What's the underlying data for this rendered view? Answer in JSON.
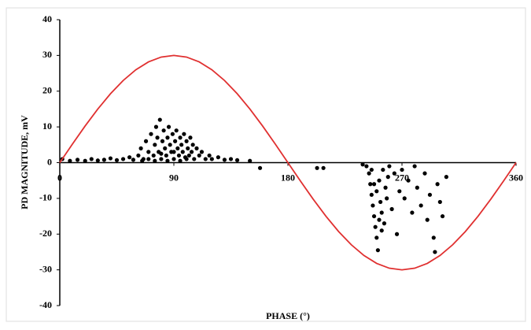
{
  "chart_data": {
    "type": "scatter",
    "y_label": "PD MAGNITUDE, mV",
    "x_label": "PHASE (°)",
    "xlim": [
      0,
      360
    ],
    "xticks": [
      0,
      90,
      180,
      270,
      360
    ],
    "ylim": [
      -40,
      40
    ],
    "yticks": [
      -40,
      -30,
      -20,
      -10,
      0,
      10,
      20,
      30,
      40
    ],
    "points": {
      "color": "#000000",
      "x": [
        2,
        8,
        14,
        20,
        25,
        30,
        35,
        40,
        45,
        50,
        55,
        58,
        62,
        64,
        66,
        68,
        70,
        72,
        74,
        75,
        76,
        77,
        78,
        79,
        80,
        81,
        82,
        83,
        84,
        85,
        86,
        87,
        88,
        89,
        90,
        91,
        92,
        93,
        94,
        95,
        96,
        97,
        98,
        99,
        100,
        101,
        102,
        103,
        104,
        105,
        106,
        108,
        110,
        112,
        115,
        118,
        120,
        125,
        130,
        135,
        140,
        150,
        158,
        203,
        208,
        65,
        70,
        75,
        80,
        85,
        90,
        95,
        100,
        239,
        242,
        244,
        245,
        246,
        247,
        248,
        249,
        250,
        251,
        252,
        253,
        254,
        255,
        256,
        257,
        258,
        259,
        260,
        262,
        264,
        266,
        268,
        270,
        272,
        275,
        278,
        280,
        282,
        285,
        288,
        290,
        292,
        295,
        296,
        298,
        300,
        302,
        305,
        250,
        248,
        246,
        252,
        254
      ],
      "values": [
        1,
        0.5,
        0.8,
        0.5,
        1,
        0.6,
        0.8,
        1.2,
        0.7,
        1,
        1.5,
        0.8,
        2,
        4,
        1,
        6,
        3,
        8,
        2,
        5,
        10,
        7,
        3,
        12,
        1,
        6,
        9,
        4,
        2,
        7,
        10,
        5,
        3,
        8,
        1,
        6,
        9,
        4,
        2,
        7,
        5,
        3,
        8,
        1.5,
        6,
        4,
        2,
        7,
        3,
        5,
        1,
        4,
        2,
        3,
        1,
        2,
        1,
        1.5,
        0.8,
        1,
        0.7,
        0.5,
        -1.5,
        -1.5,
        -1.5,
        0.5,
        1,
        0.5,
        2.5,
        0.5,
        3,
        0.5,
        1,
        -0.5,
        -1,
        -3,
        -6,
        -9,
        -12,
        -15,
        -18,
        -21,
        -24.5,
        -5,
        -11,
        -14,
        -2,
        -17,
        -7,
        -10,
        -4,
        -1,
        -13,
        -3,
        -20,
        -8,
        -2,
        -10,
        -5,
        -14,
        -1,
        -7,
        -12,
        -3,
        -16,
        -9,
        -21,
        -25,
        -6,
        -11,
        -15,
        -4,
        -8,
        -6,
        -2,
        -16,
        -19
      ]
    },
    "curve": {
      "color": "#e03030",
      "x": [
        0,
        10,
        20,
        30,
        40,
        50,
        60,
        70,
        80,
        90,
        100,
        110,
        120,
        130,
        140,
        150,
        160,
        170,
        180,
        190,
        200,
        210,
        220,
        230,
        240,
        250,
        260,
        270,
        280,
        290,
        300,
        310,
        320,
        330,
        340,
        350,
        360
      ],
      "values": [
        0,
        5.21,
        10.26,
        15,
        19.28,
        22.98,
        25.98,
        28.19,
        29.54,
        30,
        29.54,
        28.19,
        25.98,
        22.98,
        19.28,
        15,
        10.26,
        5.21,
        0,
        -5.21,
        -10.26,
        -15,
        -19.28,
        -22.98,
        -25.98,
        -28.19,
        -29.54,
        -30,
        -29.54,
        -28.19,
        -25.98,
        -22.98,
        -19.28,
        -15,
        -10.26,
        -5.21,
        0
      ]
    }
  }
}
